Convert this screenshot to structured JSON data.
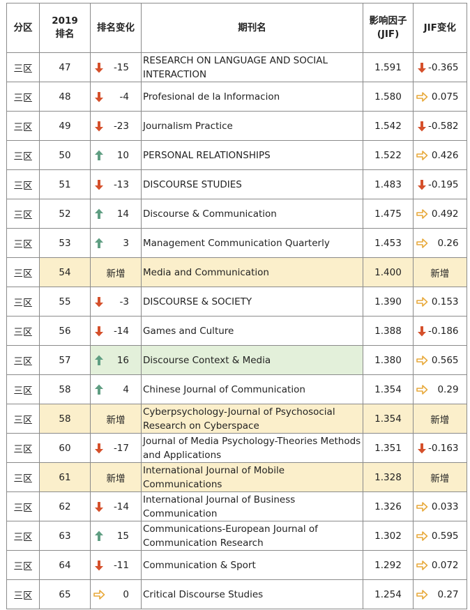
{
  "headers": {
    "zone": "分区",
    "rank_line1": "2019",
    "rank_line2": "排名",
    "rank_change": "排名变化",
    "journal": "期刊名",
    "jif_line1": "影响因子",
    "jif_line2": "(JIF)",
    "jif_change": "JIF变化"
  },
  "colors": {
    "down": "#d5502b",
    "up": "#5f9e82",
    "flat": "#e8a93a",
    "new_row_bg": "#fbefcb",
    "green_cell_bg": "#e3f0da"
  },
  "rows": [
    {
      "zone": "三区",
      "rank": "47",
      "rank_change": "-15",
      "rank_dir": "down",
      "journal": "RESEARCH ON LANGUAGE AND SOCIAL INTERACTION",
      "jif": "1.591",
      "jif_change": "-0.365",
      "jif_dir": "down"
    },
    {
      "zone": "三区",
      "rank": "48",
      "rank_change": "-4",
      "rank_dir": "down",
      "journal": "Profesional de la Informacion",
      "jif": "1.580",
      "jif_change": "0.075",
      "jif_dir": "flat"
    },
    {
      "zone": "三区",
      "rank": "49",
      "rank_change": "-23",
      "rank_dir": "down",
      "journal": "Journalism Practice",
      "jif": "1.542",
      "jif_change": "-0.582",
      "jif_dir": "down"
    },
    {
      "zone": "三区",
      "rank": "50",
      "rank_change": "10",
      "rank_dir": "up",
      "journal": "PERSONAL RELATIONSHIPS",
      "jif": "1.522",
      "jif_change": "0.426",
      "jif_dir": "flat"
    },
    {
      "zone": "三区",
      "rank": "51",
      "rank_change": "-13",
      "rank_dir": "down",
      "journal": "DISCOURSE STUDIES",
      "jif": "1.483",
      "jif_change": "-0.195",
      "jif_dir": "down"
    },
    {
      "zone": "三区",
      "rank": "52",
      "rank_change": "14",
      "rank_dir": "up",
      "journal": "Discourse & Communication",
      "jif": "1.475",
      "jif_change": "0.492",
      "jif_dir": "flat"
    },
    {
      "zone": "三区",
      "rank": "53",
      "rank_change": "3",
      "rank_dir": "up",
      "journal": "Management Communication Quarterly",
      "jif": "1.453",
      "jif_change": "0.26",
      "jif_dir": "flat"
    },
    {
      "zone": "三区",
      "rank": "54",
      "rank_change": "新增",
      "rank_dir": "new",
      "journal": "Media and Communication",
      "jif": "1.400",
      "jif_change": "新增",
      "jif_dir": "new",
      "highlight": "new"
    },
    {
      "zone": "三区",
      "rank": "55",
      "rank_change": "-3",
      "rank_dir": "down",
      "journal": "DISCOURSE & SOCIETY",
      "jif": "1.390",
      "jif_change": "0.153",
      "jif_dir": "flat"
    },
    {
      "zone": "三区",
      "rank": "56",
      "rank_change": "-14",
      "rank_dir": "down",
      "journal": "Games and Culture",
      "jif": "1.388",
      "jif_change": "-0.186",
      "jif_dir": "down"
    },
    {
      "zone": "三区",
      "rank": "57",
      "rank_change": "16",
      "rank_dir": "up",
      "journal": "Discourse Context & Media",
      "jif": "1.380",
      "jif_change": "0.565",
      "jif_dir": "flat",
      "highlight": "green"
    },
    {
      "zone": "三区",
      "rank": "58",
      "rank_change": "4",
      "rank_dir": "up",
      "journal": "Chinese Journal of Communication",
      "jif": "1.354",
      "jif_change": "0.29",
      "jif_dir": "flat"
    },
    {
      "zone": "三区",
      "rank": "58",
      "rank_change": "新增",
      "rank_dir": "new",
      "journal": "Cyberpsychology-Journal of Psychosocial Research on Cyberspace",
      "jif": "1.354",
      "jif_change": "新增",
      "jif_dir": "new",
      "highlight": "new"
    },
    {
      "zone": "三区",
      "rank": "60",
      "rank_change": "-17",
      "rank_dir": "down",
      "journal": "Journal of Media Psychology-Theories Methods and Applications",
      "jif": "1.351",
      "jif_change": "-0.163",
      "jif_dir": "down"
    },
    {
      "zone": "三区",
      "rank": "61",
      "rank_change": "新增",
      "rank_dir": "new",
      "journal": "International Journal of Mobile Communications",
      "jif": "1.328",
      "jif_change": "新增",
      "jif_dir": "new",
      "highlight": "new"
    },
    {
      "zone": "三区",
      "rank": "62",
      "rank_change": "-14",
      "rank_dir": "down",
      "journal": "International Journal of Business Communication",
      "jif": "1.326",
      "jif_change": "0.033",
      "jif_dir": "flat"
    },
    {
      "zone": "三区",
      "rank": "63",
      "rank_change": "15",
      "rank_dir": "up",
      "journal": "Communications-European Journal of Communication Research",
      "jif": "1.302",
      "jif_change": "0.595",
      "jif_dir": "flat"
    },
    {
      "zone": "三区",
      "rank": "64",
      "rank_change": "-11",
      "rank_dir": "down",
      "journal": "Communication & Sport",
      "jif": "1.292",
      "jif_change": "0.072",
      "jif_dir": "flat"
    },
    {
      "zone": "三区",
      "rank": "65",
      "rank_change": "0",
      "rank_dir": "flat",
      "journal": "Critical Discourse Studies",
      "jif": "1.254",
      "jif_change": "0.27",
      "jif_dir": "flat"
    }
  ]
}
